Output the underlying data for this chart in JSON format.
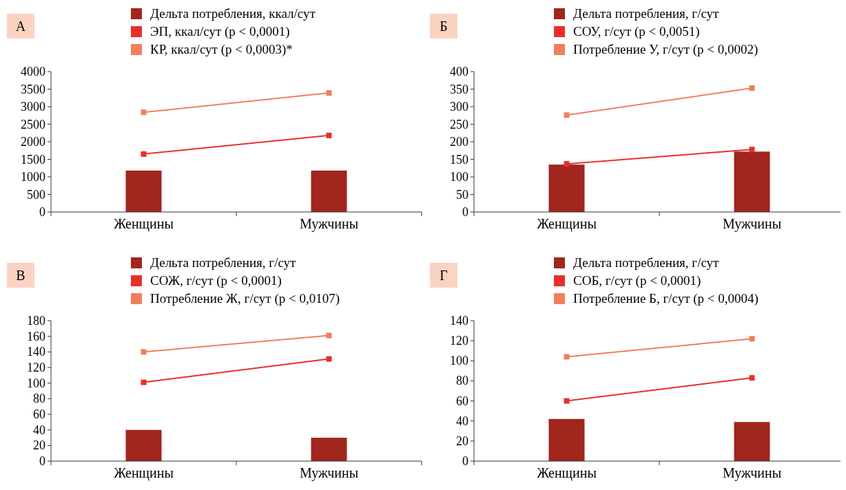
{
  "chart_data": [
    {
      "type": "bar",
      "title": "А",
      "categories": [
        "Женщины",
        "Мужчины"
      ],
      "ylim": [
        0,
        4000
      ],
      "yticks": [
        0,
        500,
        1000,
        1500,
        2000,
        2500,
        3000,
        3500,
        4000
      ],
      "legend": "top",
      "marker": "square",
      "grid": false,
      "series": [
        {
          "name": "Дельта потребления, ккал/сут",
          "color": "#a0261e",
          "values": [
            1180,
            1180
          ]
        },
        {
          "name": "ЭП, ккал/сут (p < 0,0001)",
          "type": "line",
          "color": "#e8302a",
          "values": [
            1650,
            2180
          ]
        },
        {
          "name": "КР, ккал/сут (p < 0,0003)*",
          "type": "line",
          "color": "#f07f5c",
          "values": [
            2840,
            3390
          ]
        }
      ]
    },
    {
      "type": "bar",
      "title": "Б",
      "categories": [
        "Женщины",
        "Мужчины"
      ],
      "ylim": [
        0,
        400
      ],
      "yticks": [
        0,
        50,
        100,
        150,
        200,
        250,
        300,
        350,
        400
      ],
      "legend": "top",
      "marker": "square",
      "grid": false,
      "series": [
        {
          "name": "Дельта потребления, г/сут",
          "color": "#a0261e",
          "values": [
            135,
            172
          ]
        },
        {
          "name": "СОУ, г/сут (p < 0,0051)",
          "type": "line",
          "color": "#e8302a",
          "values": [
            137,
            178
          ]
        },
        {
          "name": "Потребление У, г/сут (p < 0,0002)",
          "type": "line",
          "color": "#f07f5c",
          "values": [
            276,
            353
          ]
        }
      ]
    },
    {
      "type": "bar",
      "title": "В",
      "categories": [
        "Женщины",
        "Мужчины"
      ],
      "ylim": [
        0,
        180
      ],
      "yticks": [
        0,
        20,
        40,
        60,
        80,
        100,
        120,
        140,
        160,
        180
      ],
      "legend": "top",
      "marker": "square",
      "grid": false,
      "series": [
        {
          "name": "Дельта потребления, г/сут",
          "color": "#a0261e",
          "values": [
            40,
            30
          ]
        },
        {
          "name": "СОЖ, г/сут (p < 0,0001)",
          "type": "line",
          "color": "#e8302a",
          "values": [
            101,
            131
          ]
        },
        {
          "name": "Потребление Ж, г/сут (p < 0,0107)",
          "type": "line",
          "color": "#f07f5c",
          "values": [
            140,
            161
          ]
        }
      ]
    },
    {
      "type": "bar",
      "title": "Г",
      "categories": [
        "Женщины",
        "Мужчины"
      ],
      "ylim": [
        0,
        140
      ],
      "yticks": [
        0,
        20,
        40,
        60,
        80,
        100,
        120,
        140
      ],
      "legend": "top",
      "marker": "square",
      "grid": false,
      "series": [
        {
          "name": "Дельта потребления, г/сут",
          "color": "#a0261e",
          "values": [
            42,
            39
          ]
        },
        {
          "name": "СОБ, г/сут (p < 0,0001)",
          "type": "line",
          "color": "#e8302a",
          "values": [
            60,
            83
          ]
        },
        {
          "name": "Потребление Б, г/сут (p < 0,0004)",
          "type": "line",
          "color": "#f07f5c",
          "values": [
            104,
            122
          ]
        }
      ]
    }
  ]
}
